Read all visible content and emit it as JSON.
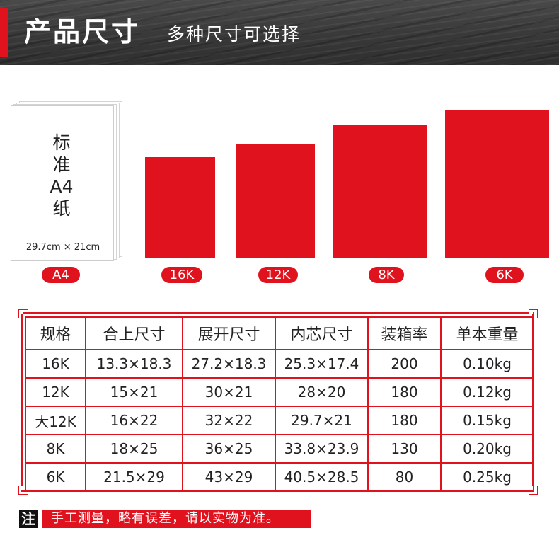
{
  "header": {
    "title": "产品尺寸",
    "subtitle": "多种尺寸可选择",
    "accent_color": "#e0121e"
  },
  "illustration": {
    "a4_label_chars": [
      "标",
      "准",
      "A4",
      "纸"
    ],
    "a4_dimension": "29.7cm × 21cm",
    "size_tags": [
      "A4",
      "16K",
      "12K",
      "8K",
      "6K"
    ],
    "block_color": "#e0121e"
  },
  "table": {
    "headers": [
      "规格",
      "合上尺寸",
      "展开尺寸",
      "内芯尺寸",
      "装箱率",
      "单本重量"
    ],
    "rows": [
      [
        "16K",
        "13.3×18.3",
        "27.2×18.3",
        "25.3×17.4",
        "200",
        "0.10kg"
      ],
      [
        "12K",
        "15×21",
        "30×21",
        "28×20",
        "180",
        "0.12kg"
      ],
      [
        "大12K",
        "16×22",
        "32×22",
        "29.7×21",
        "180",
        "0.15kg"
      ],
      [
        "8K",
        "18×25",
        "36×25",
        "33.8×23.9",
        "130",
        "0.20kg"
      ],
      [
        "6K",
        "21.5×29",
        "43×29",
        "40.5×28.5",
        "80",
        "0.25kg"
      ]
    ]
  },
  "note": {
    "label": "注",
    "text": "手工测量，略有误差，请以实物为准。"
  }
}
